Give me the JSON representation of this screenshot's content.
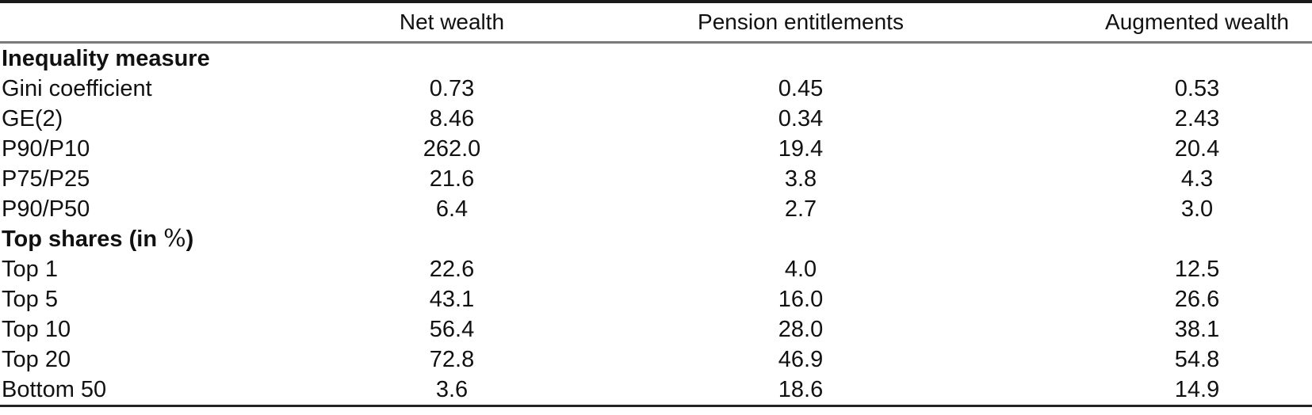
{
  "header": {
    "net_wealth": "Net wealth",
    "pension_entitlements": "Pension entitlements",
    "augmented_wealth": "Augmented wealth"
  },
  "sections": [
    {
      "title": "Inequality measure",
      "rows": [
        {
          "label": "Gini coefficient",
          "values": [
            "0.73",
            "0.45",
            "0.53"
          ]
        },
        {
          "label": "GE(2)",
          "values": [
            "8.46",
            "0.34",
            "2.43"
          ]
        },
        {
          "label": "P90/P10",
          "values": [
            "262.0",
            "19.4",
            "20.4"
          ]
        },
        {
          "label": "P75/P25",
          "values": [
            "21.6",
            "3.8",
            "4.3"
          ]
        },
        {
          "label": "P90/P50",
          "values": [
            "6.4",
            "2.7",
            "3.0"
          ]
        }
      ]
    },
    {
      "title_prefix": "Top shares (in ",
      "percent_symbol": "%",
      "title_suffix": ")",
      "rows": [
        {
          "label": "Top 1",
          "values": [
            "22.6",
            "4.0",
            "12.5"
          ]
        },
        {
          "label": "Top 5",
          "values": [
            "43.1",
            "16.0",
            "26.6"
          ]
        },
        {
          "label": "Top 10",
          "values": [
            "56.4",
            "28.0",
            "38.1"
          ]
        },
        {
          "label": "Top 20",
          "values": [
            "72.8",
            "46.9",
            "54.8"
          ]
        },
        {
          "label": "Bottom 50",
          "values": [
            "3.6",
            "18.6",
            "14.9"
          ]
        }
      ]
    }
  ],
  "style": {
    "text_color": "#111111",
    "top_rule_color": "#1a1a1a",
    "mid_rule_color": "#7a7a7a",
    "bottom_rule_color": "#222222",
    "background": "#ffffff"
  }
}
